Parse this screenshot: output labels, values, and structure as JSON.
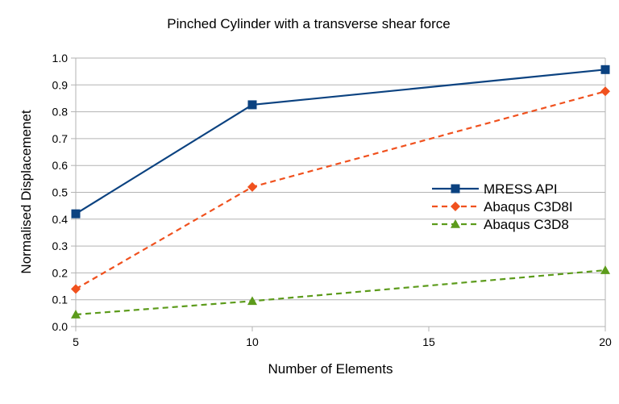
{
  "chart_data": {
    "type": "line",
    "title": "Pinched Cylinder with a transverse shear force",
    "xlabel": "Number of Elements",
    "ylabel": "Normalised Displacemenet",
    "xlim": [
      5,
      20
    ],
    "ylim": [
      0,
      1
    ],
    "x_ticks": [
      "5",
      "10",
      "15",
      "20"
    ],
    "y_ticks": [
      "0.0",
      "0.1",
      "0.2",
      "0.3",
      "0.4",
      "0.5",
      "0.6",
      "0.7",
      "0.8",
      "0.9",
      "1.0"
    ],
    "x": [
      5,
      10,
      20
    ],
    "grid": "horizontal",
    "legend_position": "right",
    "series": [
      {
        "name": "MRESS API",
        "values": [
          0.42,
          0.826,
          0.957
        ],
        "color": "#0b4280",
        "marker": "square",
        "dash": "solid"
      },
      {
        "name": "Abaqus C3D8I",
        "values": [
          0.14,
          0.52,
          0.876
        ],
        "color": "#f0511e",
        "marker": "diamond",
        "dash": "dashed"
      },
      {
        "name": "Abaqus C3D8",
        "values": [
          0.045,
          0.095,
          0.21
        ],
        "color": "#5c9b1b",
        "marker": "triangle",
        "dash": "dashed"
      }
    ]
  }
}
